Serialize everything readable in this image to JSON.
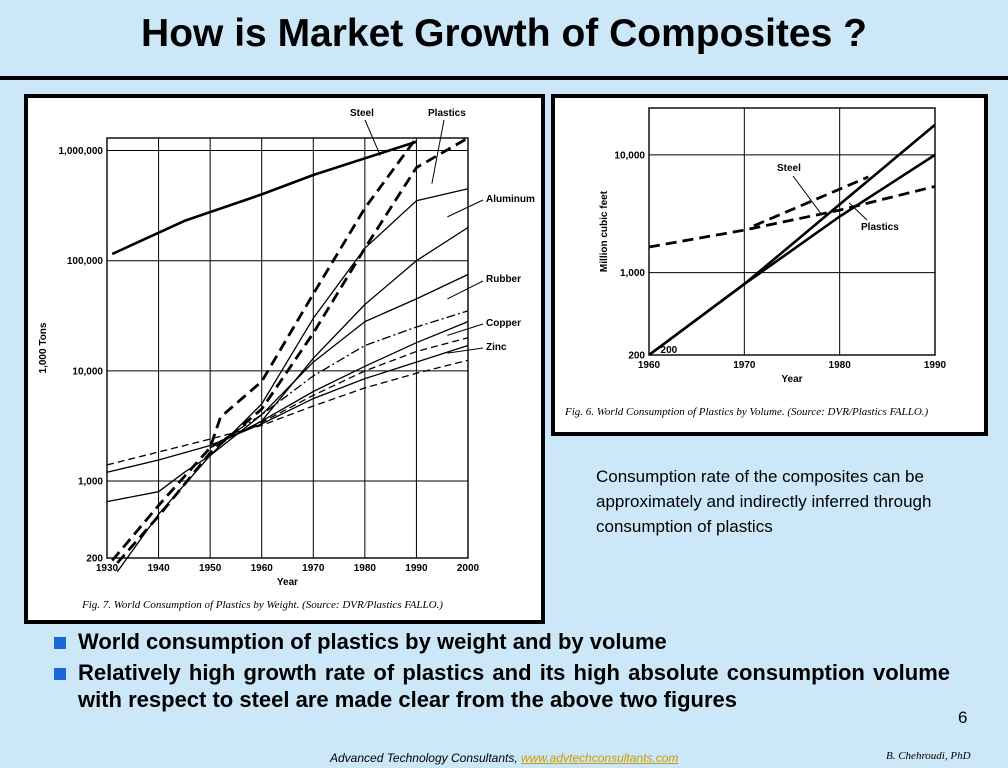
{
  "slide": {
    "title": "How is Market Growth of Composites ?",
    "note": "Consumption rate of the composites can be approximately and indirectly inferred through consumption of plastics",
    "bullets": [
      "World consumption of plastics by weight and by volume",
      "Relatively high growth rate of plastics and its high absolute consumption volume with respect to steel are made clear from the above two figures"
    ],
    "page_number": "6",
    "footer_text": "Advanced Technology Consultants, ",
    "footer_link": "www.advtechconsultants.com",
    "author": "B. Chehroudi, PhD",
    "colors": {
      "background": "#cce8f8",
      "bullet": "#1a66d6",
      "link": "#cc9900"
    }
  },
  "chart_data": [
    {
      "type": "line",
      "caption": "Fig. 7. World Consumption of Plastics by Weight. (Source: DVR/Plastics FALLO.)",
      "xlabel": "Year",
      "ylabel": "1,000 Tons",
      "yscale": "log",
      "xlim": [
        1930,
        2000
      ],
      "ylim": [
        200,
        1300000
      ],
      "xticks": [
        "1930",
        "1940",
        "1950",
        "1960",
        "1970",
        "1980",
        "1990",
        "2000"
      ],
      "yticks": [
        {
          "value": 200,
          "label": "200"
        },
        {
          "value": 1000,
          "label": "1,000"
        },
        {
          "value": 10000,
          "label": "10,000"
        },
        {
          "value": 100000,
          "label": "100,000"
        },
        {
          "value": 1000000,
          "label": "1,000,000"
        }
      ],
      "grid": true,
      "series": [
        {
          "name": "Steel",
          "style": "solid-thick",
          "points": [
            [
              1931,
              115000
            ],
            [
              1945,
              230000
            ],
            [
              1960,
              400000
            ],
            [
              1970,
              600000
            ],
            [
              1980,
              850000
            ],
            [
              1990,
              1200000
            ]
          ]
        },
        {
          "name": "Plastics",
          "style": "dashed-thick",
          "points": [
            [
              1931,
              190
            ],
            [
              1940,
              600
            ],
            [
              1950,
              2000
            ],
            [
              1952,
              3800
            ],
            [
              1960,
              8000
            ],
            [
              1970,
              50000
            ],
            [
              1980,
              300000
            ],
            [
              1990,
              1300000
            ]
          ]
        },
        {
          "name": "Plastics",
          "style": "dashed-thick",
          "points": [
            [
              1932,
              180
            ],
            [
              1940,
              480
            ],
            [
              1950,
              1800
            ],
            [
              1960,
              4500
            ],
            [
              1970,
              22000
            ],
            [
              1980,
              130000
            ],
            [
              1990,
              700000
            ],
            [
              2000,
              1300000
            ]
          ]
        },
        {
          "name": "Aluminum",
          "style": "solid",
          "points": [
            [
              1932,
              150
            ],
            [
              1940,
              500
            ],
            [
              1950,
              1700
            ],
            [
              1960,
              5000
            ],
            [
              1970,
              30000
            ],
            [
              1980,
              130000
            ],
            [
              1990,
              350000
            ],
            [
              2000,
              450000
            ]
          ]
        },
        {
          "name": "",
          "style": "solid",
          "points": [
            [
              1950,
              2000
            ],
            [
              1960,
              3500
            ],
            [
              1970,
              13000
            ],
            [
              1980,
              40000
            ],
            [
              1990,
              100000
            ],
            [
              2000,
              200000
            ]
          ]
        },
        {
          "name": "Rubber",
          "style": "solid",
          "points": [
            [
              1930,
              650
            ],
            [
              1940,
              800
            ],
            [
              1945,
              1200
            ],
            [
              1950,
              1700
            ],
            [
              1960,
              4000
            ],
            [
              1970,
              12000
            ],
            [
              1980,
              28000
            ],
            [
              1990,
              45000
            ],
            [
              2000,
              75000
            ]
          ]
        },
        {
          "name": "",
          "style": "dash-dot",
          "points": [
            [
              1950,
              2000
            ],
            [
              1960,
              4000
            ],
            [
              1970,
              9000
            ],
            [
              1980,
              17000
            ],
            [
              1990,
              25000
            ],
            [
              2000,
              35000
            ]
          ]
        },
        {
          "name": "Copper",
          "style": "solid",
          "points": [
            [
              1950,
              2000
            ],
            [
              1960,
              3500
            ],
            [
              1970,
              6500
            ],
            [
              1980,
              11000
            ],
            [
              1990,
              18000
            ],
            [
              2000,
              28000
            ]
          ]
        },
        {
          "name": "",
          "style": "dashed",
          "points": [
            [
              1950,
              2100
            ],
            [
              1960,
              3400
            ],
            [
              1970,
              6000
            ],
            [
              1980,
              10000
            ],
            [
              1990,
              15000
            ],
            [
              2000,
              20000
            ]
          ]
        },
        {
          "name": "Zinc",
          "style": "solid",
          "points": [
            [
              1930,
              1200
            ],
            [
              1940,
              1550
            ],
            [
              1950,
              2100
            ],
            [
              1960,
              3300
            ],
            [
              1970,
              5600
            ],
            [
              1980,
              8500
            ],
            [
              1990,
              12000
            ],
            [
              2000,
              17000
            ]
          ]
        },
        {
          "name": "",
          "style": "dashed",
          "points": [
            [
              1930,
              1400
            ],
            [
              1950,
              2400
            ],
            [
              1960,
              3200
            ],
            [
              1970,
              4800
            ],
            [
              1980,
              7000
            ],
            [
              1990,
              9500
            ],
            [
              2000,
              12500
            ]
          ]
        }
      ]
    },
    {
      "type": "line",
      "caption": "Fig. 6. World Consumption of Plastics by Volume. (Source: DVR/Plastics FALLO.)",
      "xlabel": "Year",
      "ylabel": "Million cubic feet",
      "yscale": "log",
      "xlim": [
        1960,
        1990
      ],
      "ylim": [
        200,
        25000
      ],
      "xticks": [
        "1960",
        "1970",
        "1980",
        "1990"
      ],
      "yticks": [
        {
          "value": 200,
          "label": "200"
        },
        {
          "value": 1000,
          "label": "1,000"
        },
        {
          "value": 10000,
          "label": "10,000"
        }
      ],
      "grid": true,
      "series": [
        {
          "name": "Steel",
          "style": "dashed-thick",
          "points": [
            [
              1960,
              1650
            ],
            [
              1970,
              2300
            ],
            [
              1980,
              3400
            ],
            [
              1990,
              5400
            ]
          ]
        },
        {
          "name": "Steel",
          "style": "dashed-thick",
          "points": [
            [
              1971,
              2500
            ],
            [
              1983,
              6500
            ]
          ]
        },
        {
          "name": "Plastics",
          "style": "solid-thick",
          "points": [
            [
              1960,
              200
            ],
            [
              1970,
              800
            ],
            [
              1980,
              3000
            ],
            [
              1990,
              10000
            ]
          ]
        },
        {
          "name": "Plastics",
          "style": "solid-thick",
          "points": [
            [
              1960,
              200
            ],
            [
              1970,
              800
            ],
            [
              1980,
              3800
            ],
            [
              1990,
              18000
            ]
          ]
        }
      ],
      "annotations": [
        {
          "text": "200",
          "x": 1961,
          "y": 200
        }
      ]
    }
  ]
}
